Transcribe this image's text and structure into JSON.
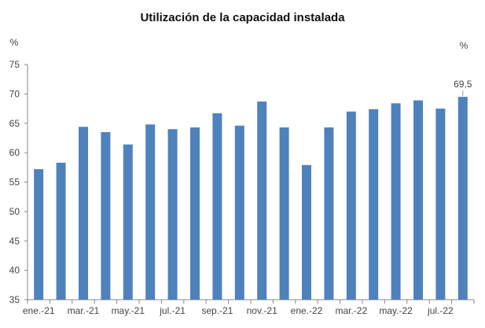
{
  "chart_data": {
    "type": "bar",
    "title": "Utilización de la capacidad  instalada",
    "ylabel_left": "%",
    "ylabel_right": "%",
    "categories": [
      "ene.-21",
      "feb.-21",
      "mar.-21",
      "abr.-21",
      "may.-21",
      "jun.-21",
      "jul.-21",
      "ago.-21",
      "sep.-21",
      "oct.-21",
      "nov.-21",
      "dic.-21",
      "ene.-22",
      "feb.-22",
      "mar.-22",
      "abr.-22",
      "may.-22",
      "jun.-22",
      "jul.-22",
      "ago.-22"
    ],
    "visible_tick_labels": [
      "ene.-21",
      "mar.-21",
      "may.-21",
      "jul.-21",
      "sep.-21",
      "nov.-21",
      "ene.-22",
      "mar.-22",
      "may.-22",
      "jul.-22"
    ],
    "values": [
      57.2,
      58.3,
      64.4,
      63.5,
      61.4,
      64.8,
      64.0,
      64.3,
      66.7,
      64.6,
      68.7,
      64.3,
      57.9,
      64.3,
      67.0,
      67.4,
      68.4,
      68.9,
      67.5,
      69.5
    ],
    "data_labels": [
      {
        "index": 19,
        "text": "69,5"
      }
    ],
    "ylim": [
      35,
      75
    ],
    "yticks": [
      35,
      40,
      45,
      50,
      55,
      60,
      65,
      70,
      75
    ],
    "grid": false,
    "bar_color": "#4F81BD"
  }
}
